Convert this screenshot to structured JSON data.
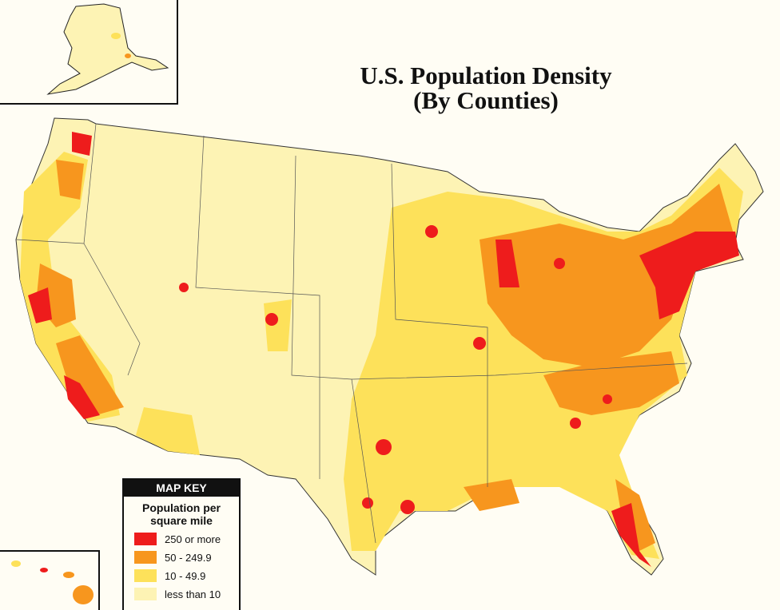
{
  "title": "U.S. Population Density",
  "subtitle": "(By Counties)",
  "map_key": {
    "heading": "MAP KEY",
    "caption_lines": [
      "Population per",
      "square mile"
    ],
    "items": [
      {
        "label": "250 or more",
        "color": "#ee1c1c"
      },
      {
        "label": "50 - 249.9",
        "color": "#f7961e"
      },
      {
        "label": "10 - 49.9",
        "color": "#fde15a"
      },
      {
        "label": "less than 10",
        "color": "#fdf3b4"
      }
    ]
  }
}
